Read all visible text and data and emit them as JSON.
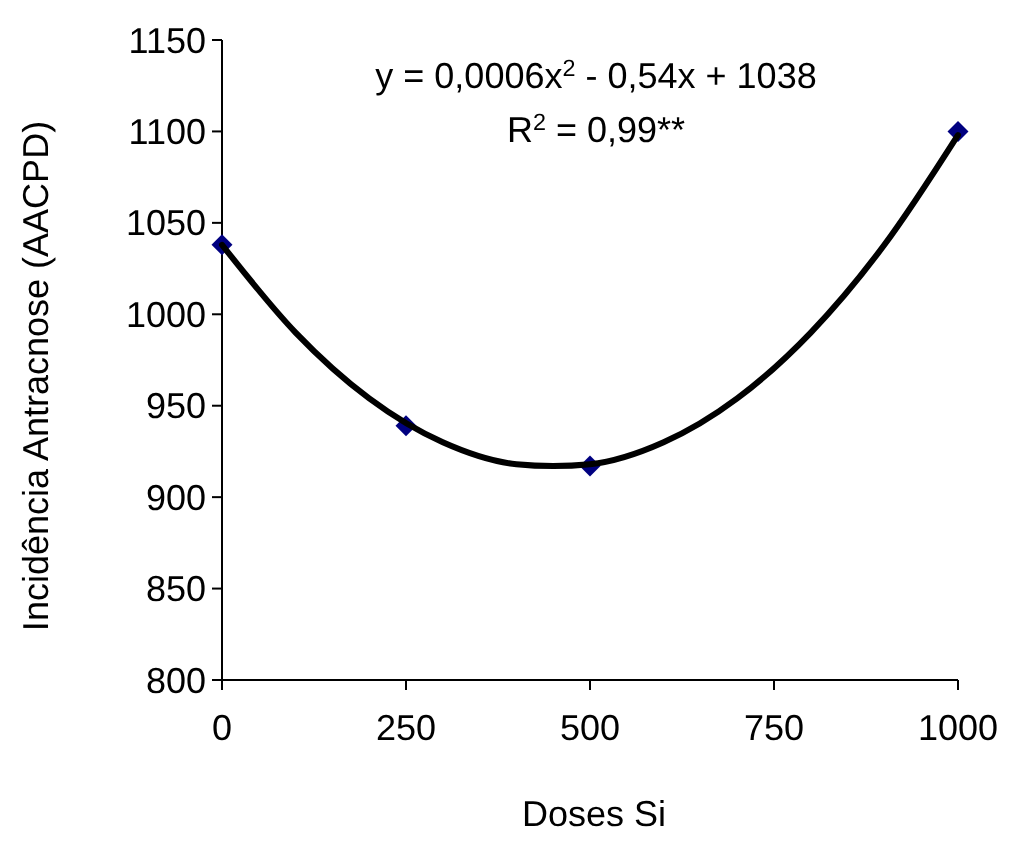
{
  "chart_data": {
    "type": "scatter",
    "xlabel": "Doses Si",
    "ylabel": "Incidência Antracnose (AACPD)",
    "annotations": [
      "y = 0,0006x$^{2}$ - 0,54x + 1038",
      "R$^{2}$ = 0,99**"
    ],
    "xlim": [
      0,
      1000
    ],
    "xticks": [
      0,
      250,
      500,
      750,
      1000
    ],
    "ylim": [
      800,
      1150
    ],
    "yticks": [
      800,
      850,
      900,
      950,
      1000,
      1050,
      1100,
      1150
    ],
    "grid": false,
    "series": [
      {
        "color": "#000080",
        "marker": "diamond",
        "x": [
          0,
          250,
          500,
          1000
        ],
        "values": [
          1038,
          939,
          917,
          1100
        ]
      },
      {
        "type": "line",
        "color": "#000000",
        "marker": "none",
        "line_style": "solid",
        "x": [
          0,
          100,
          200,
          300,
          400,
          450,
          500,
          600,
          700,
          800,
          900,
          1000
        ],
        "values": [
          1038,
          990,
          954,
          930,
          918,
          917,
          918,
          930,
          954,
          990,
          1038,
          1098
        ]
      }
    ]
  }
}
